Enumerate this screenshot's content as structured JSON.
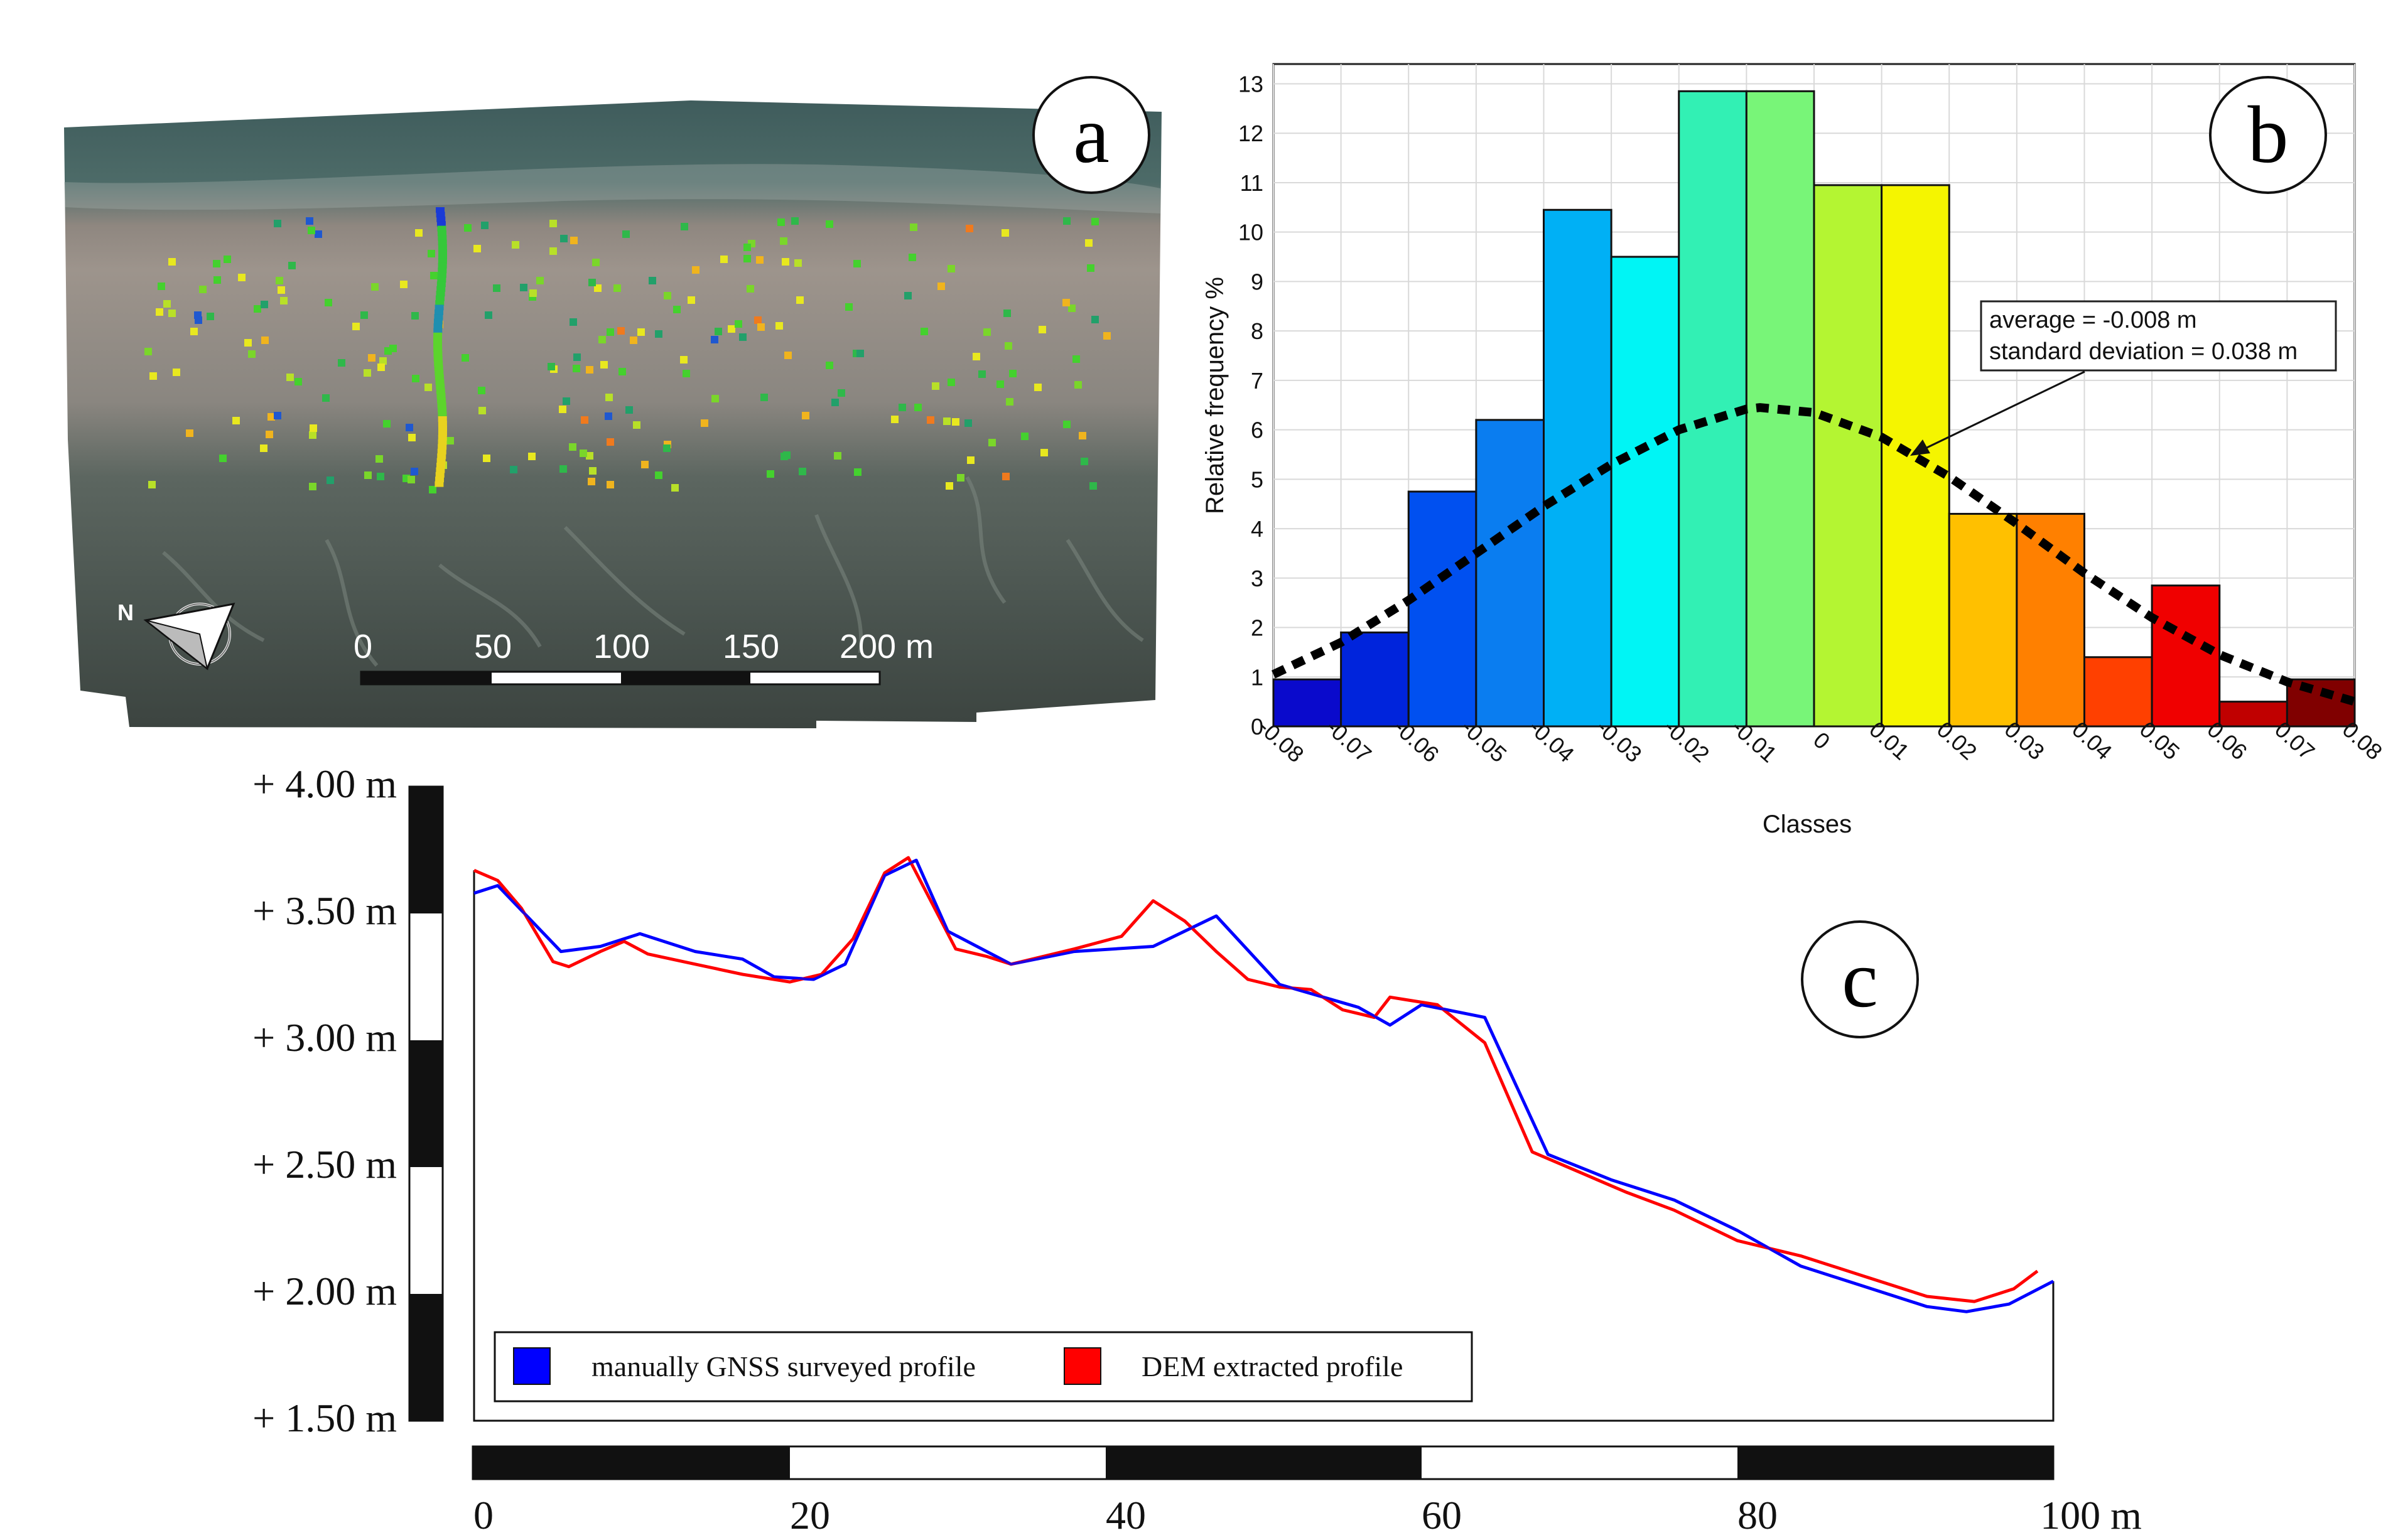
{
  "panel_a": {
    "label": "a",
    "north_label": "N",
    "scale_labels": [
      "0",
      "50",
      "100",
      "150",
      "200 m"
    ]
  },
  "panel_b": {
    "label": "b",
    "annotation_lines": [
      "average = -0.008 m",
      "standard deviation = 0.038 m"
    ]
  },
  "panel_c": {
    "label": "c",
    "vertical_scale_labels": [
      "+ 4.00 m",
      "+ 3.50 m",
      "+ 3.00 m",
      "+ 2.50 m",
      "+ 2.00 m",
      "+ 1.50 m"
    ],
    "horizontal_scale_labels": [
      "0",
      "20",
      "40",
      "60",
      "80",
      "100 m"
    ],
    "legend": [
      "manually GNSS surveyed profile",
      "DEM extracted profile"
    ]
  },
  "colors": {
    "gnss_line": "#0000ff",
    "dem_line": "#ff0000",
    "fit_curve": "#000000"
  },
  "chart_data": [
    {
      "type": "bar",
      "panel": "b",
      "title": "",
      "xlabel": "Classes",
      "ylabel": "Relative frequency %",
      "x_ticks": [
        "-0.08",
        "-0.07",
        "-0.06",
        "-0.05",
        "-0.04",
        "-0.03",
        "-0.02",
        "-0.01",
        "0",
        "0.01",
        "0.02",
        "0.03",
        "0.04",
        "0.05",
        "0.06",
        "0.07",
        "0.08"
      ],
      "y_ticks": [
        "0",
        "1",
        "2",
        "3",
        "4",
        "5",
        "6",
        "7",
        "8",
        "9",
        "10",
        "11",
        "12",
        "13"
      ],
      "xlim": [
        -0.08,
        0.08
      ],
      "ylim": [
        0,
        13.4
      ],
      "grid": true,
      "bin_width": 0.01,
      "bin_left_edges": [
        -0.08,
        -0.07,
        -0.06,
        -0.05,
        -0.04,
        -0.03,
        -0.02,
        -0.01,
        0,
        0.01,
        0.02,
        0.03,
        0.04,
        0.05,
        0.06,
        0.07
      ],
      "values": [
        0.95,
        1.9,
        4.75,
        6.2,
        10.45,
        9.5,
        12.85,
        12.85,
        10.95,
        10.95,
        4.3,
        4.3,
        1.4,
        2.85,
        0.5,
        0.95
      ],
      "bar_colors": [
        "#0a0acc",
        "#0024dc",
        "#0050f0",
        "#0a7df0",
        "#00b0f5",
        "#00f5f5",
        "#32f0b4",
        "#78f578",
        "#b4f532",
        "#f5f500",
        "#ffc000",
        "#ff8000",
        "#ff4000",
        "#f00000",
        "#c00000",
        "#800000"
      ],
      "overlay_curve": {
        "name": "normal fit",
        "mean": -0.008,
        "std": 0.038,
        "x": [
          -0.08,
          -0.07,
          -0.06,
          -0.05,
          -0.04,
          -0.03,
          -0.02,
          -0.01,
          -0.008,
          0,
          0.01,
          0.02,
          0.03,
          0.04,
          0.05,
          0.06,
          0.07,
          0.08
        ],
        "y": [
          1.05,
          1.7,
          2.55,
          3.5,
          4.45,
          5.3,
          6.0,
          6.42,
          6.45,
          6.35,
          5.85,
          5.05,
          4.1,
          3.1,
          2.2,
          1.45,
          0.9,
          0.5
        ]
      },
      "annotation": "average = -0.008 m / standard deviation = 0.038 m"
    },
    {
      "type": "line",
      "panel": "c",
      "xlabel": "",
      "ylabel": "",
      "xlim": [
        0,
        100
      ],
      "ylim": [
        1.5,
        4.0
      ],
      "series": [
        {
          "name": "manually GNSS surveyed profile",
          "x": [
            0,
            1.5,
            5.5,
            8,
            10.5,
            14,
            17,
            19,
            21.5,
            23.5,
            26,
            28,
            30,
            34,
            38,
            43,
            47,
            51,
            56,
            58,
            60,
            64,
            68,
            72,
            76,
            80,
            84,
            88,
            92,
            94.5,
            97.2,
            100
          ],
          "y": [
            3.58,
            3.61,
            3.35,
            3.37,
            3.42,
            3.35,
            3.32,
            3.25,
            3.24,
            3.3,
            3.65,
            3.71,
            3.43,
            3.3,
            3.35,
            3.37,
            3.49,
            3.22,
            3.13,
            3.06,
            3.14,
            3.09,
            2.55,
            2.45,
            2.37,
            2.25,
            2.11,
            2.03,
            1.95,
            1.93,
            1.96,
            2.05
          ]
        },
        {
          "name": "DEM extracted profile",
          "x": [
            0,
            1.5,
            3,
            5,
            6,
            8,
            9.5,
            11,
            14,
            17,
            20,
            22,
            24,
            26,
            27.5,
            28.5,
            30.5,
            32.5,
            34,
            36,
            38,
            41,
            43,
            45,
            47,
            49,
            51,
            53,
            55,
            57,
            58,
            59,
            61,
            64,
            67,
            70,
            73,
            76,
            80,
            84,
            88,
            92,
            95,
            97.5,
            99
          ],
          "y": [
            3.67,
            3.63,
            3.52,
            3.31,
            3.29,
            3.35,
            3.39,
            3.34,
            3.3,
            3.26,
            3.23,
            3.26,
            3.4,
            3.66,
            3.72,
            3.6,
            3.36,
            3.33,
            3.3,
            3.33,
            3.36,
            3.41,
            3.55,
            3.47,
            3.35,
            3.24,
            3.21,
            3.2,
            3.12,
            3.09,
            3.17,
            3.16,
            3.14,
            2.99,
            2.56,
            2.48,
            2.4,
            2.33,
            2.21,
            2.15,
            2.07,
            1.99,
            1.97,
            2.02,
            2.09
          ]
        }
      ]
    }
  ]
}
